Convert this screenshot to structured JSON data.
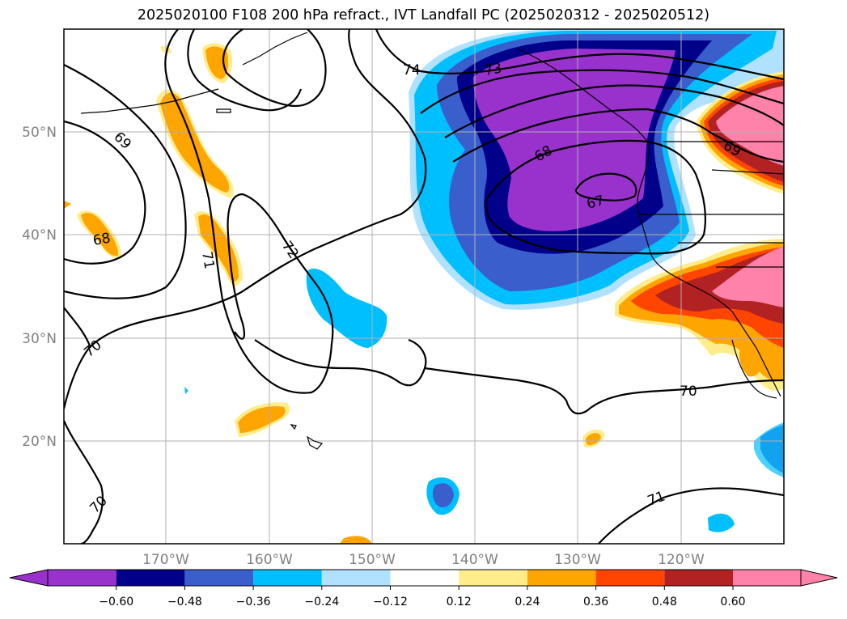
{
  "title": "2025020100 F108 200 hPa refract., IVT Landfall PC (2025020312 - 2025020512)",
  "map": {
    "lat_ticks": [
      "50°N",
      "40°N",
      "30°N",
      "20°N"
    ],
    "lon_ticks": [
      "170°W",
      "160°W",
      "150°W",
      "140°W",
      "130°W",
      "120°W"
    ],
    "contour_labels": [
      "74",
      "73",
      "69",
      "68",
      "67",
      "72",
      "71",
      "68",
      "69",
      "70",
      "70",
      "70",
      "71"
    ],
    "fill_regions": [
      {
        "name": "north-america-west-coast-negative",
        "sign": "negative",
        "peak": "<-0.60"
      },
      {
        "name": "california-positive",
        "sign": "positive",
        "peak": ">0.60"
      },
      {
        "name": "pacific-northwest-inland-positive",
        "sign": "positive",
        "peak": ">0.60"
      },
      {
        "name": "aleutian-positive",
        "sign": "positive",
        "peak": "0.24-0.36"
      },
      {
        "name": "central-pacific-negative",
        "sign": "negative",
        "peak": "-0.24 to -0.36"
      },
      {
        "name": "hawaii-positive",
        "sign": "positive",
        "peak": "0.24-0.36"
      }
    ]
  },
  "colorbar": {
    "ticks": [
      "−0.60",
      "−0.48",
      "−0.36",
      "−0.24",
      "−0.12",
      "0.12",
      "0.24",
      "0.36",
      "0.48",
      "0.60"
    ],
    "colors": [
      "#9932cc",
      "#00008b",
      "#3a5fcd",
      "#00bfff",
      "#b0e2ff",
      "#ffffff",
      "#ffec8b",
      "#ffa500",
      "#ff4500",
      "#b22222",
      "#ff82ab"
    ]
  }
}
